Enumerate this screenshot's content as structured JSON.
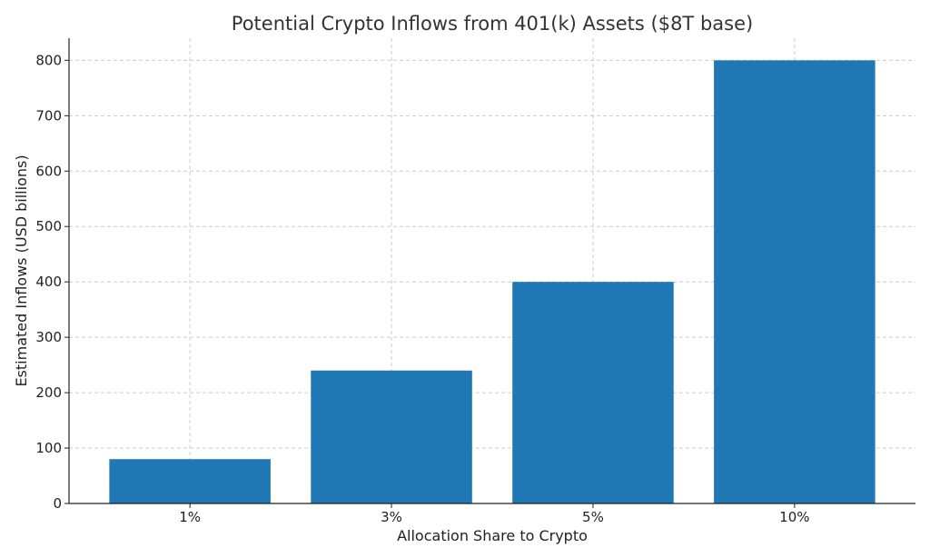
{
  "chart_data": {
    "type": "bar",
    "title": "Potential Crypto Inflows from 401(k) Assets ($8T base)",
    "xlabel": "Allocation Share to Crypto",
    "ylabel": "Estimated Inflows (USD billions)",
    "categories": [
      "1%",
      "3%",
      "5%",
      "10%"
    ],
    "values": [
      80,
      240,
      400,
      800
    ],
    "ylim": [
      0,
      840
    ],
    "yticks": [
      0,
      100,
      200,
      300,
      400,
      500,
      600,
      700,
      800
    ],
    "grid": true,
    "bar_color": "#1f77b4"
  }
}
